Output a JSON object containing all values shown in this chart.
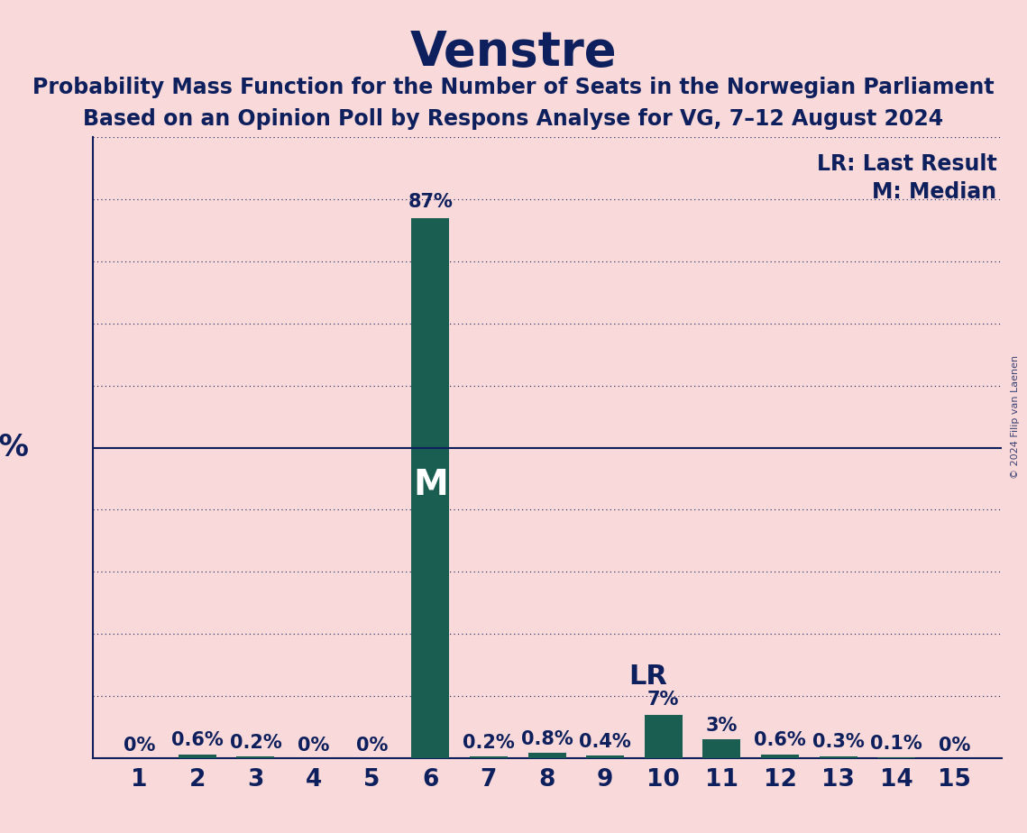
{
  "title": "Venstre",
  "subtitle1": "Probability Mass Function for the Number of Seats in the Norwegian Parliament",
  "subtitle2": "Based on an Opinion Poll by Respons Analyse for VG, 7–12 August 2024",
  "copyright": "© 2024 Filip van Laenen",
  "seats": [
    1,
    2,
    3,
    4,
    5,
    6,
    7,
    8,
    9,
    10,
    11,
    12,
    13,
    14,
    15
  ],
  "probabilities": [
    0.0,
    0.6,
    0.2,
    0.0,
    0.0,
    87.0,
    0.2,
    0.8,
    0.4,
    7.0,
    3.0,
    0.6,
    0.3,
    0.1,
    0.0
  ],
  "labels": [
    "0%",
    "0.6%",
    "0.2%",
    "0%",
    "0%",
    "87%",
    "0.2%",
    "0.8%",
    "0.4%",
    "7%",
    "3%",
    "0.6%",
    "0.3%",
    "0.1%",
    "0%"
  ],
  "bar_color": "#1a5e52",
  "background_color": "#f9d9d9",
  "text_color": "#0d1f5c",
  "median_seat": 6,
  "lr_seat": 10,
  "ylim": [
    0,
    100
  ],
  "grid_color": "#0d1f5c",
  "bar_width": 0.65,
  "title_fontsize": 38,
  "subtitle_fontsize": 17,
  "label_fontsize": 15,
  "tick_fontsize": 19,
  "fifty_label_fontsize": 24,
  "legend_fontsize": 17,
  "M_fontsize": 28
}
